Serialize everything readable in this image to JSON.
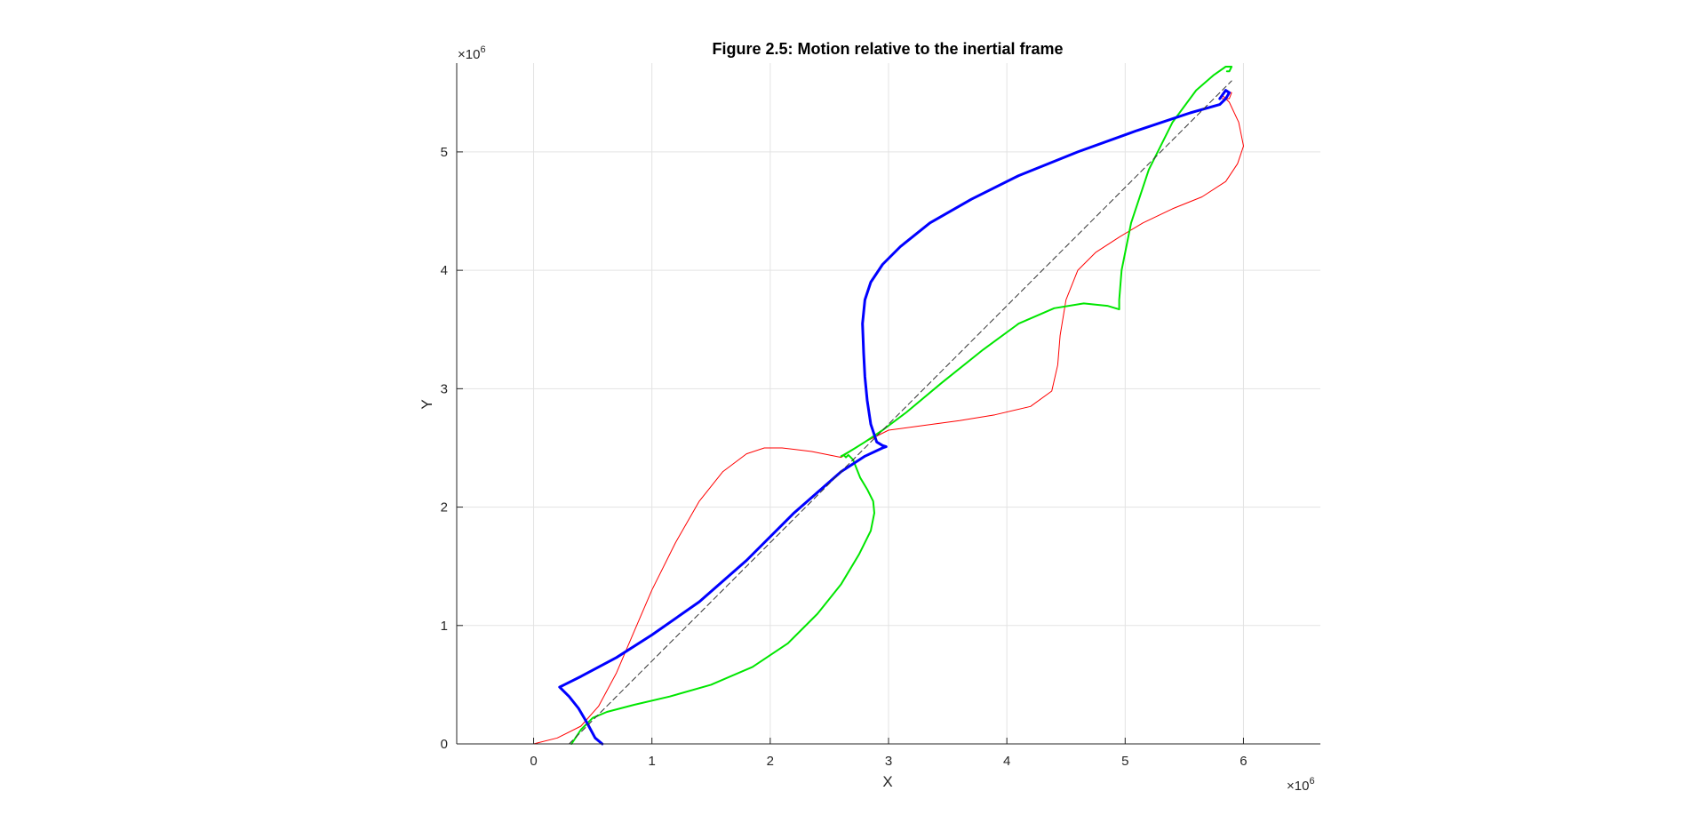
{
  "chart_data": {
    "type": "line",
    "title": "Figure 2.5: Motion relative to the inertial frame",
    "xlabel": "X",
    "ylabel": "Y",
    "x_multiplier": "×10",
    "x_multiplier_exp": "6",
    "y_multiplier": "×10",
    "y_multiplier_exp": "6",
    "xlim": [
      -0.65,
      6.65
    ],
    "ylim": [
      0,
      5.75
    ],
    "xticks": [
      0,
      1,
      2,
      3,
      4,
      5,
      6
    ],
    "xtick_labels": [
      "0",
      "1",
      "2",
      "3",
      "4",
      "5",
      "6"
    ],
    "yticks": [
      0,
      1,
      2,
      3,
      4,
      5
    ],
    "ytick_labels": [
      "0",
      "1",
      "2",
      "3",
      "4",
      "5"
    ],
    "grid": true,
    "legend": "none",
    "series": [
      {
        "color": "#ff0000",
        "width": 1,
        "dash": "",
        "x": [
          0.0,
          0.2,
          0.4,
          0.55,
          0.7,
          0.85,
          1.0,
          1.2,
          1.4,
          1.6,
          1.8,
          1.95,
          2.1,
          2.35,
          2.6,
          2.8,
          3.0,
          3.3,
          3.6,
          3.9,
          4.2,
          4.38,
          4.43,
          4.45,
          4.5,
          4.6,
          4.75,
          4.95,
          5.15,
          5.4,
          5.65,
          5.85,
          5.95,
          6.0,
          5.96,
          5.88,
          5.82,
          5.84,
          5.9,
          5.88,
          5.82
        ],
        "y": [
          0.0,
          0.05,
          0.15,
          0.32,
          0.6,
          0.95,
          1.3,
          1.7,
          2.05,
          2.3,
          2.45,
          2.5,
          2.5,
          2.47,
          2.42,
          2.55,
          2.65,
          2.69,
          2.73,
          2.78,
          2.85,
          2.98,
          3.2,
          3.45,
          3.75,
          4.0,
          4.15,
          4.28,
          4.4,
          4.52,
          4.62,
          4.75,
          4.9,
          5.05,
          5.25,
          5.42,
          5.48,
          5.52,
          5.5,
          5.45,
          5.45
        ]
      },
      {
        "color": "#00e600",
        "width": 2,
        "dash": "",
        "x": [
          0.32,
          0.4,
          0.5,
          0.62,
          0.85,
          1.15,
          1.5,
          1.85,
          2.15,
          2.4,
          2.6,
          2.75,
          2.85,
          2.88,
          2.87,
          2.82,
          2.76,
          2.72,
          2.7,
          2.68,
          2.66,
          2.64,
          2.62,
          2.6,
          2.62,
          2.67,
          2.72,
          2.8,
          2.95,
          3.15,
          3.45,
          3.8,
          4.1,
          4.4,
          4.65,
          4.85,
          4.95,
          4.95,
          4.97,
          5.05,
          5.2,
          5.4,
          5.6,
          5.75,
          5.85,
          5.9,
          5.88,
          5.86
        ],
        "y": [
          0.0,
          0.12,
          0.22,
          0.27,
          0.33,
          0.4,
          0.5,
          0.65,
          0.85,
          1.1,
          1.35,
          1.6,
          1.8,
          1.95,
          2.05,
          2.15,
          2.25,
          2.35,
          2.4,
          2.42,
          2.44,
          2.42,
          2.44,
          2.43,
          2.44,
          2.47,
          2.5,
          2.55,
          2.65,
          2.8,
          3.05,
          3.33,
          3.55,
          3.68,
          3.72,
          3.7,
          3.67,
          3.75,
          4.0,
          4.4,
          4.85,
          5.25,
          5.52,
          5.65,
          5.72,
          5.72,
          5.68,
          5.68
        ]
      },
      {
        "color": "#0000ff",
        "width": 3,
        "dash": "",
        "x": [
          0.58,
          0.52,
          0.45,
          0.38,
          0.3,
          0.22,
          0.4,
          0.7,
          1.0,
          1.4,
          1.8,
          2.2,
          2.6,
          2.8,
          2.95,
          2.98,
          2.95,
          2.9,
          2.85,
          2.82,
          2.8,
          2.79,
          2.78,
          2.8,
          2.85,
          2.95,
          3.1,
          3.35,
          3.7,
          4.1,
          4.6,
          5.1,
          5.55,
          5.8,
          5.85,
          5.88,
          5.85,
          5.8
        ],
        "y": [
          0.0,
          0.05,
          0.18,
          0.3,
          0.4,
          0.48,
          0.57,
          0.73,
          0.92,
          1.2,
          1.55,
          1.95,
          2.3,
          2.43,
          2.5,
          2.51,
          2.52,
          2.55,
          2.7,
          2.9,
          3.1,
          3.3,
          3.55,
          3.75,
          3.9,
          4.05,
          4.2,
          4.4,
          4.6,
          4.8,
          5.0,
          5.18,
          5.33,
          5.4,
          5.45,
          5.5,
          5.52,
          5.45
        ]
      },
      {
        "color": "#333333",
        "width": 1,
        "dash": "6,4",
        "x": [
          0.3,
          5.9
        ],
        "y": [
          0.0,
          5.6
        ]
      }
    ]
  }
}
